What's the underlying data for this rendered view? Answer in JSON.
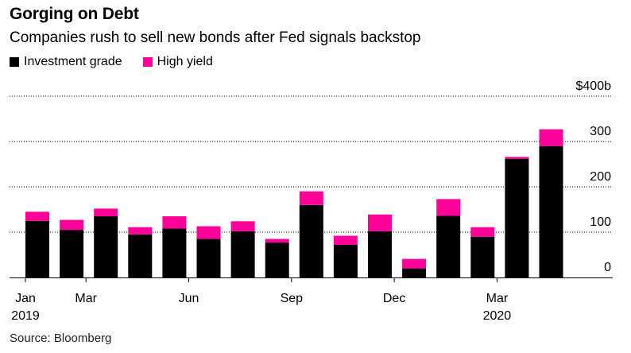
{
  "title": "Gorging on Debt",
  "subtitle": "Companies rush to sell new bonds after Fed signals backstop",
  "legend": [
    {
      "name": "Investment grade",
      "color": "#000000"
    },
    {
      "name": "High yield",
      "color": "#ff0099"
    }
  ],
  "source": "Source: Bloomberg",
  "chart_data": {
    "type": "bar",
    "stacked": true,
    "categories": [
      "Jan 2019",
      "Feb 2019",
      "Mar 2019",
      "Apr 2019",
      "May 2019",
      "Jun 2019",
      "Jul 2019",
      "Aug 2019",
      "Sep 2019",
      "Oct 2019",
      "Nov 2019",
      "Dec 2019",
      "Jan 2020",
      "Feb 2020",
      "Mar 2020",
      "Apr 2020"
    ],
    "x_tick_labels": [
      {
        "index": 0,
        "line1": "Jan",
        "line2": "2019"
      },
      {
        "index": 2,
        "line1": "Mar",
        "line2": ""
      },
      {
        "index": 5,
        "line1": "Jun",
        "line2": ""
      },
      {
        "index": 8,
        "line1": "Sep",
        "line2": ""
      },
      {
        "index": 11,
        "line1": "Dec",
        "line2": ""
      },
      {
        "index": 14,
        "line1": "Mar",
        "line2": "2020"
      }
    ],
    "series": [
      {
        "name": "Investment grade",
        "color": "#000000",
        "values": [
          125,
          105,
          135,
          95,
          108,
          85,
          102,
          77,
          160,
          72,
          102,
          20,
          136,
          90,
          262,
          290
        ]
      },
      {
        "name": "High yield",
        "color": "#ff0099",
        "values": [
          20,
          22,
          17,
          16,
          27,
          28,
          22,
          8,
          30,
          20,
          37,
          21,
          37,
          21,
          4,
          37
        ]
      }
    ],
    "y_ticks": [
      {
        "value": 0,
        "label": "0"
      },
      {
        "value": 100,
        "label": "100"
      },
      {
        "value": 200,
        "label": "200"
      },
      {
        "value": 300,
        "label": "300"
      },
      {
        "value": 400,
        "label": "$400b"
      }
    ],
    "ylim": [
      0,
      400
    ],
    "grid": true
  }
}
